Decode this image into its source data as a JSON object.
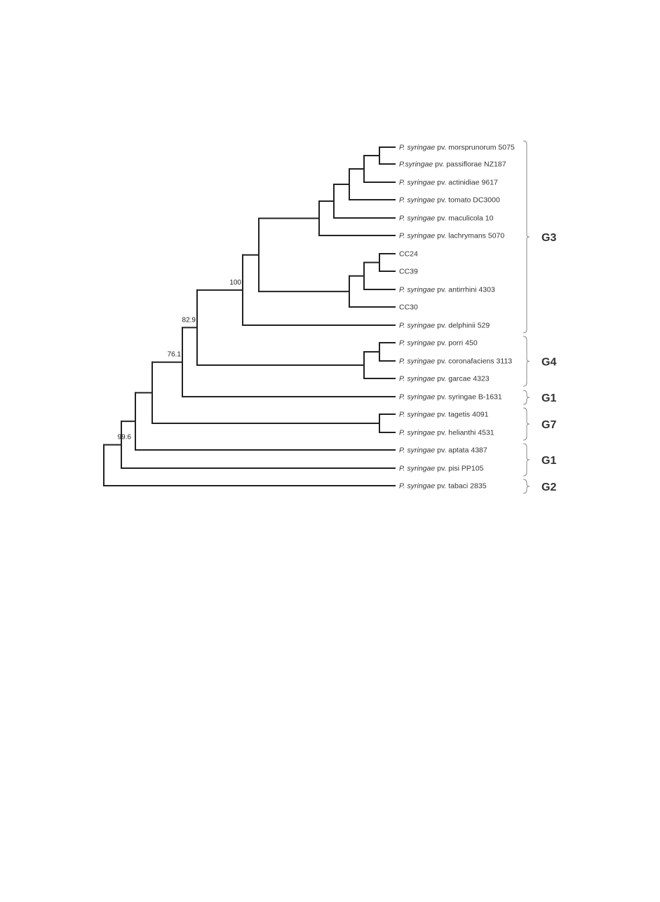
{
  "leaves": [
    {
      "genus": "P. syringae",
      "rest": " pv. morsprunorum 5075"
    },
    {
      "genus": "P.syringae",
      "rest": " pv. passiflorae NZ187"
    },
    {
      "genus": "P. syringae",
      "rest": " pv. actinidiae 9617"
    },
    {
      "genus": "P. syringae",
      "rest": " pv. tomato  DC3000"
    },
    {
      "genus": "P. syringae",
      "rest": " pv. maculicola 10"
    },
    {
      "genus": "P. syringae",
      "rest": " pv. lachrymans 5070"
    },
    {
      "genus": "",
      "rest": "CC24"
    },
    {
      "genus": "",
      "rest": "CC39"
    },
    {
      "genus": "P. syringae",
      "rest": " pv. antirrhini 4303"
    },
    {
      "genus": "",
      "rest": "CC30"
    },
    {
      "genus": "P. syringae",
      "rest": " pv. delphinii 529"
    },
    {
      "genus": "P. syringae",
      "rest": " pv. porri 450"
    },
    {
      "genus": "P. syringae",
      "rest": " pv. coronafaciens 3113"
    },
    {
      "genus": "P. syringae",
      "rest": " pv. garcae 4323"
    },
    {
      "genus": "P. syringae",
      "rest": " pv. syringae B-1631"
    },
    {
      "genus": "P. syringae",
      "rest": " pv. tagetis 4091"
    },
    {
      "genus": "P. syringae",
      "rest": " pv. helianthi 4531"
    },
    {
      "genus": "P. syringae",
      "rest": " pv. aptata 4387"
    },
    {
      "genus": "P. syringae",
      "rest": " pv. pisi PP105"
    },
    {
      "genus": "P. syringae",
      "rest": " pv. tabaci  2835"
    }
  ],
  "bootstrap_values": [
    "100",
    "82.9",
    "76.1",
    "99.6"
  ],
  "groups": [
    {
      "label": "G3",
      "first_leaf": 0,
      "last_leaf": 10
    },
    {
      "label": "G4",
      "first_leaf": 11,
      "last_leaf": 13
    },
    {
      "label": "G1",
      "first_leaf": 14,
      "last_leaf": 14
    },
    {
      "label": "G7",
      "first_leaf": 15,
      "last_leaf": 16
    },
    {
      "label": "G1",
      "first_leaf": 17,
      "last_leaf": 18
    },
    {
      "label": "G2",
      "first_leaf": 19,
      "last_leaf": 19
    }
  ],
  "colors": {
    "branch": "#222222",
    "label": "#333333",
    "brace": "#888888"
  }
}
